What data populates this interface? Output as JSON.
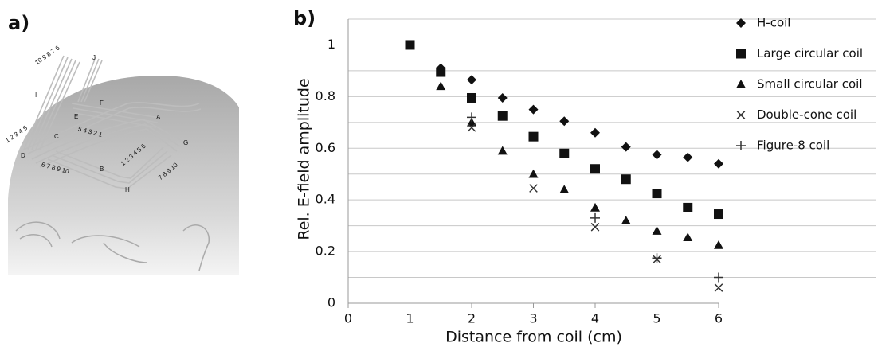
{
  "panels": {
    "a": "a)",
    "b": "b)"
  },
  "illustration": {
    "labels": [
      "10 9 8 7 6",
      "J",
      "I",
      "F",
      "E",
      "A",
      "G",
      "C",
      "D",
      "B",
      "H",
      "1 2 3 4 5",
      "5 4 3 2 1",
      "6 7 8 9 10",
      "1 2 3 4 5 6",
      "7 8 9 10"
    ]
  },
  "chart_data": {
    "type": "scatter",
    "x_label": "Distance from coil (cm)",
    "y_label": "Rel. E-field amplitude",
    "xlim": [
      0,
      6
    ],
    "xticks": [
      0,
      1,
      2,
      3,
      4,
      5,
      6
    ],
    "ylim": [
      0,
      1.1
    ],
    "yticks": [
      0,
      0.2,
      0.4,
      0.6,
      0.8,
      1
    ],
    "minor_yticks": [
      0.1,
      0.3,
      0.5,
      0.7,
      0.9,
      1.1
    ],
    "grid": true,
    "legend": "right",
    "series": [
      {
        "name": "H-coil",
        "marker": "diamond",
        "color": "#111111",
        "x": [
          1.5,
          2,
          2.5,
          3,
          3.5,
          4,
          4.5,
          5,
          5.5,
          6
        ],
        "values": [
          0.91,
          0.865,
          0.795,
          0.75,
          0.705,
          0.66,
          0.605,
          0.575,
          0.565,
          0.54
        ]
      },
      {
        "name": "Large circular coil",
        "marker": "square",
        "color": "#111111",
        "x": [
          1,
          1.5,
          2,
          2.5,
          3,
          3.5,
          4,
          4.5,
          5,
          5.5,
          6
        ],
        "values": [
          1.0,
          0.895,
          0.795,
          0.725,
          0.645,
          0.58,
          0.52,
          0.48,
          0.425,
          0.37,
          0.345
        ]
      },
      {
        "name": "Small circular coil",
        "marker": "triangle",
        "color": "#111111",
        "x": [
          1.5,
          2,
          2.5,
          3,
          3.5,
          4,
          4.5,
          5,
          5.5,
          6
        ],
        "values": [
          0.84,
          0.7,
          0.59,
          0.5,
          0.44,
          0.37,
          0.32,
          0.28,
          0.255,
          0.225
        ]
      },
      {
        "name": "Double-cone coil",
        "marker": "cross",
        "color": "#333333",
        "x": [
          2,
          3,
          4,
          5,
          6
        ],
        "values": [
          0.68,
          0.445,
          0.295,
          0.17,
          0.06
        ]
      },
      {
        "name": "Figure-8 coil",
        "marker": "plus",
        "color": "#333333",
        "x": [
          2,
          4,
          5,
          6
        ],
        "values": [
          0.72,
          0.33,
          0.175,
          0.1
        ]
      }
    ]
  }
}
